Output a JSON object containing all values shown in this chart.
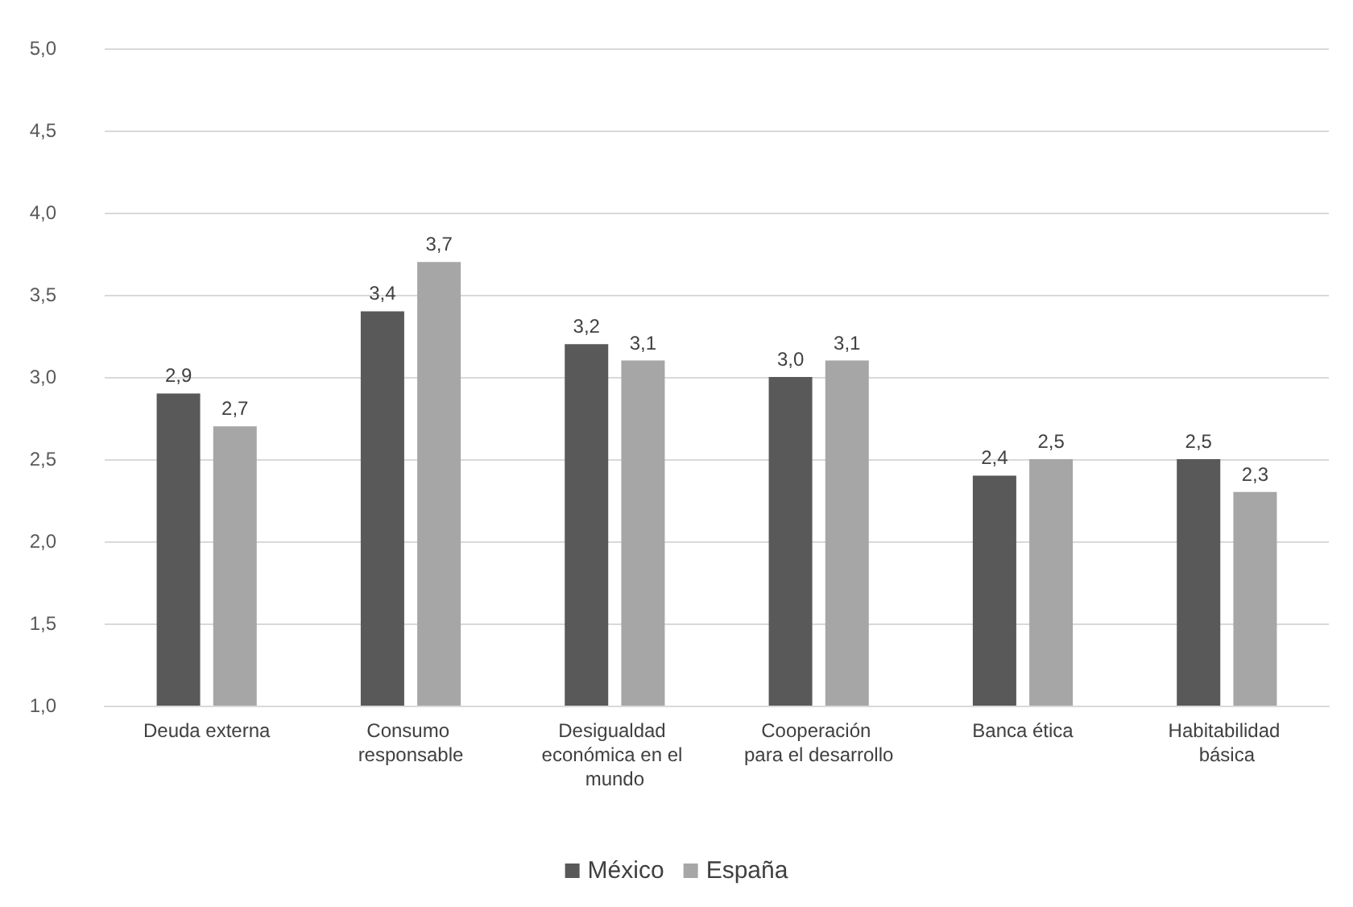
{
  "chart_data": {
    "type": "bar",
    "categories": [
      "Deuda externa",
      "Consumo responsable",
      "Desigualdad económica en el mundo",
      "Cooperación para el desarrollo",
      "Banca ética",
      "Habitabilidad básica"
    ],
    "series": [
      {
        "name": "México",
        "color": "#595959",
        "values": [
          2.9,
          3.4,
          3.2,
          3.0,
          2.4,
          2.5
        ],
        "value_labels": [
          "2,9",
          "3,4",
          "3,2",
          "3,0",
          "2,4",
          "2,5"
        ]
      },
      {
        "name": "España",
        "color": "#a6a6a6",
        "values": [
          2.7,
          3.7,
          3.1,
          3.1,
          2.5,
          2.3
        ],
        "value_labels": [
          "2,7",
          "3,7",
          "3,1",
          "3,1",
          "2,5",
          "2,3"
        ]
      }
    ],
    "ylim": [
      1.0,
      5.0
    ],
    "yticks": [
      {
        "value": 1.0,
        "label": "1,0"
      },
      {
        "value": 1.5,
        "label": "1,5"
      },
      {
        "value": 2.0,
        "label": "2,0"
      },
      {
        "value": 2.5,
        "label": "2,5"
      },
      {
        "value": 3.0,
        "label": "3,0"
      },
      {
        "value": 3.5,
        "label": "3,5"
      },
      {
        "value": 4.0,
        "label": "4,0"
      },
      {
        "value": 4.5,
        "label": "4,5"
      },
      {
        "value": 5.0,
        "label": "5,0"
      }
    ],
    "grid": "y",
    "legend": "bottom"
  }
}
